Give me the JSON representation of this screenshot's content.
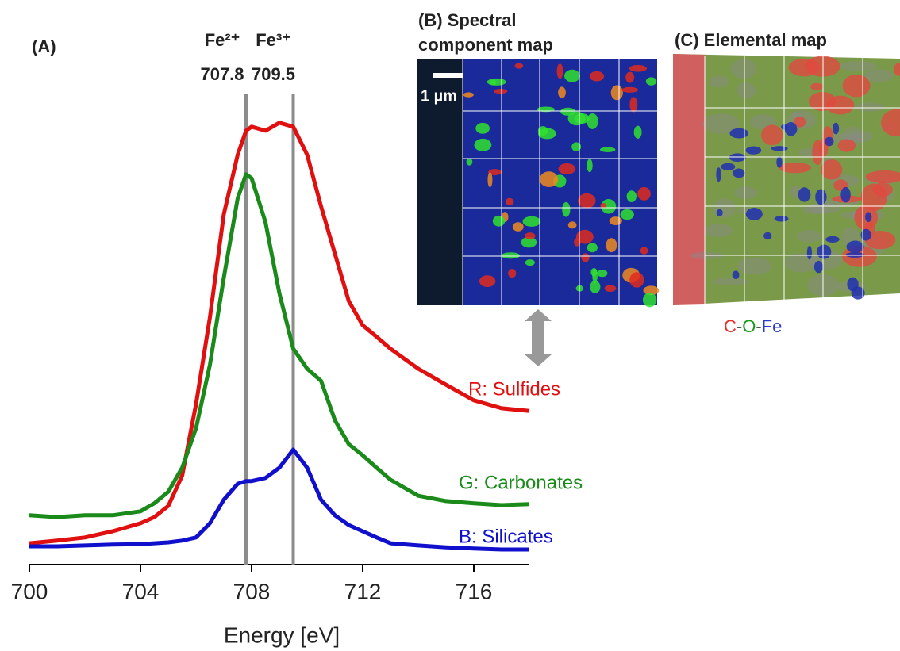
{
  "chart_data": {
    "type": "line",
    "panel_label": "(A)",
    "xlabel": "Energy [eV]",
    "x": [
      700,
      701,
      702,
      703,
      704,
      704.5,
      705,
      705.5,
      706,
      706.5,
      707,
      707.5,
      707.8,
      708,
      708.5,
      709,
      709.5,
      710,
      710.5,
      711,
      711.5,
      712,
      712.5,
      713,
      714,
      715,
      716,
      717,
      718
    ],
    "xlim": [
      700,
      718
    ],
    "ylim": [
      0,
      100
    ],
    "xticks": [
      700,
      704,
      708,
      712,
      716
    ],
    "series": [
      {
        "name": "R: Sulfides",
        "color": "#e01010",
        "values": [
          4.8,
          5.4,
          6.1,
          7.5,
          9.3,
          10.7,
          13.2,
          20.0,
          36.1,
          55.7,
          78.9,
          92.3,
          97.7,
          98.6,
          97.7,
          99.5,
          98.6,
          92.3,
          80.7,
          70.0,
          59.3,
          53.9,
          51.3,
          48.6,
          44.1,
          40.5,
          37.0,
          35.2,
          34.6
        ]
      },
      {
        "name": "G: Carbonates",
        "color": "#1a8a1a",
        "values": [
          11.1,
          10.7,
          11.1,
          11.1,
          12.0,
          13.8,
          16.4,
          21.8,
          30.7,
          45.0,
          64.6,
          82.5,
          87.9,
          87.0,
          77.1,
          61.1,
          48.6,
          44.1,
          41.4,
          32.5,
          27.1,
          24.6,
          21.8,
          19.1,
          15.5,
          14.3,
          13.8,
          13.4,
          13.6
        ]
      },
      {
        "name": "B: Silicates",
        "color": "#1010cc",
        "values": [
          4.1,
          4.1,
          4.3,
          4.5,
          4.6,
          4.8,
          5.0,
          5.4,
          6.1,
          9.3,
          14.6,
          18.2,
          18.8,
          18.8,
          19.5,
          21.8,
          25.9,
          21.8,
          14.6,
          11.1,
          8.9,
          7.5,
          6.1,
          4.8,
          4.3,
          3.9,
          3.6,
          3.4,
          3.4
        ]
      }
    ],
    "reference_lines": [
      {
        "label": "Fe²⁺",
        "value": 707.8,
        "color": "#8c8c8c"
      },
      {
        "label": "Fe³⁺",
        "value": 709.5,
        "color": "#8c8c8c"
      }
    ]
  },
  "panels": {
    "b": {
      "title_lines": [
        "(B) Spectral",
        "component map"
      ],
      "scale_bar": "1 µm"
    },
    "c": {
      "title": "(C) Elemental map",
      "legend_parts": [
        {
          "text": "C",
          "color": "#e03030"
        },
        {
          "text": "-",
          "color": "#555555"
        },
        {
          "text": "O",
          "color": "#1a9a1a"
        },
        {
          "text": "-",
          "color": "#555555"
        },
        {
          "text": "Fe",
          "color": "#2a3ad0"
        }
      ]
    }
  }
}
